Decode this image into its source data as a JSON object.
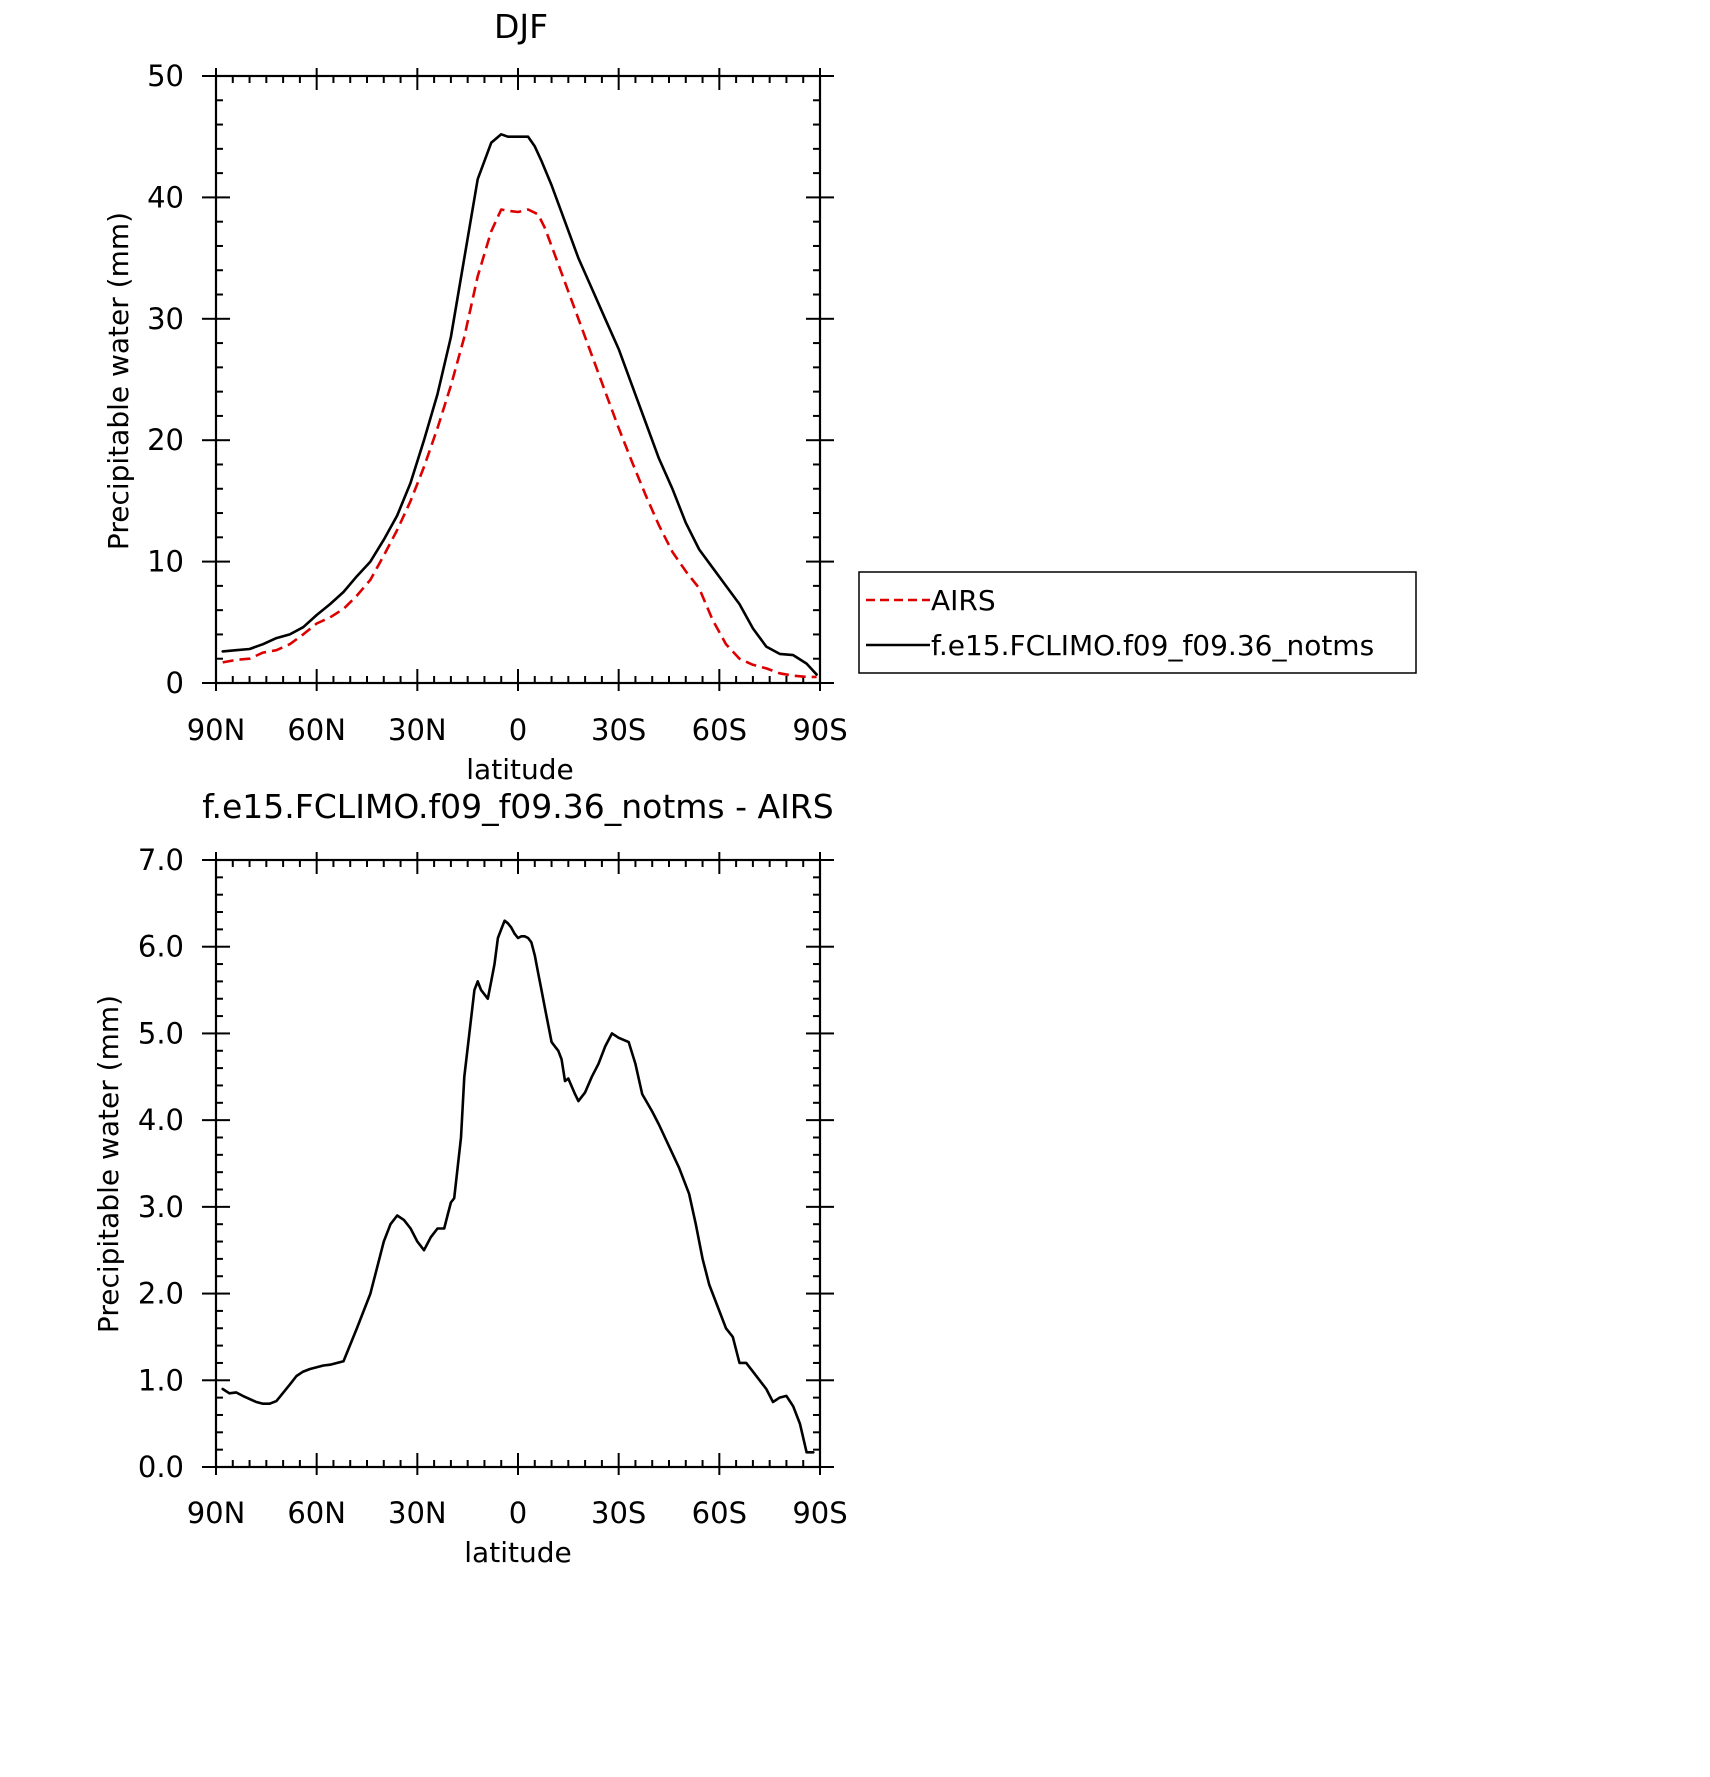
{
  "chart_data": [
    {
      "type": "line",
      "title": "DJF",
      "xlabel": "latitude",
      "ylabel": "Precipitable water (mm)",
      "xlim": [
        90,
        -90
      ],
      "ylim": [
        0,
        50
      ],
      "xtick_values": [
        90,
        60,
        30,
        0,
        -30,
        -60,
        -90
      ],
      "xtick_labels": [
        "90N",
        "60N",
        "30N",
        "0",
        "30S",
        "60S",
        "90S"
      ],
      "ytick_values": [
        0,
        10,
        20,
        30,
        40,
        50
      ],
      "ytick_labels": [
        "0",
        "10",
        "20",
        "30",
        "40",
        "50"
      ],
      "legend_position": "right",
      "series": [
        {
          "name": "AIRS",
          "color": "#dd0000",
          "style": "dashed",
          "x": [
            88,
            84,
            80,
            76,
            72,
            68,
            64,
            60,
            56,
            52,
            48,
            44,
            40,
            36,
            32,
            28,
            24,
            20,
            16,
            12,
            8,
            5,
            3,
            0,
            -3,
            -6,
            -8,
            -10,
            -14,
            -18,
            -22,
            -26,
            -30,
            -34,
            -38,
            -42,
            -46,
            -50,
            -54,
            -58,
            -62,
            -66,
            -70,
            -74,
            -78,
            -82,
            -86,
            -89
          ],
          "y": [
            1.7,
            1.9,
            2.0,
            2.5,
            2.7,
            3.2,
            4.0,
            4.9,
            5.4,
            6.1,
            7.2,
            8.5,
            10.5,
            12.6,
            15.0,
            17.8,
            21.0,
            24.5,
            28.5,
            33.5,
            37.2,
            39.0,
            38.9,
            38.8,
            39.0,
            38.6,
            37.5,
            36.0,
            33.0,
            30.0,
            27.0,
            24.0,
            21.0,
            18.2,
            15.5,
            13.0,
            10.8,
            9.2,
            7.8,
            5.2,
            3.2,
            2.0,
            1.5,
            1.2,
            0.8,
            0.6,
            0.5,
            0.5
          ]
        },
        {
          "name": "f.e15.FCLIMO.f09_f09.36_notms",
          "color": "#000000",
          "style": "solid",
          "x": [
            88,
            84,
            80,
            76,
            72,
            68,
            64,
            60,
            56,
            52,
            48,
            44,
            40,
            36,
            32,
            28,
            24,
            20,
            16,
            12,
            8,
            5,
            3,
            0,
            -3,
            -5,
            -7,
            -10,
            -14,
            -18,
            -22,
            -26,
            -30,
            -34,
            -38,
            -42,
            -46,
            -50,
            -54,
            -58,
            -62,
            -66,
            -70,
            -74,
            -78,
            -82,
            -86,
            -89
          ],
          "y": [
            2.6,
            2.7,
            2.8,
            3.2,
            3.7,
            4.0,
            4.6,
            5.6,
            6.5,
            7.5,
            8.8,
            10.0,
            11.8,
            13.8,
            16.5,
            20.0,
            23.8,
            28.5,
            35.0,
            41.5,
            44.5,
            45.2,
            45.0,
            45.0,
            45.0,
            44.2,
            43.0,
            41.0,
            38.0,
            35.0,
            32.5,
            30.0,
            27.5,
            24.5,
            21.5,
            18.5,
            16.0,
            13.2,
            11.0,
            9.5,
            8.0,
            6.5,
            4.5,
            3.0,
            2.4,
            2.3,
            1.6,
            0.7
          ]
        }
      ]
    },
    {
      "type": "line",
      "title": "f.e15.FCLIMO.f09_f09.36_notms - AIRS",
      "xlabel": "latitude",
      "ylabel": "Precipitable water (mm)",
      "xlim": [
        90,
        -90
      ],
      "ylim": [
        0,
        7
      ],
      "xtick_values": [
        90,
        60,
        30,
        0,
        -30,
        -60,
        -90
      ],
      "xtick_labels": [
        "90N",
        "60N",
        "30N",
        "0",
        "30S",
        "60S",
        "90S"
      ],
      "ytick_values": [
        0,
        1,
        2,
        3,
        4,
        5,
        6,
        7
      ],
      "ytick_labels": [
        "0.0",
        "1.0",
        "2.0",
        "3.0",
        "4.0",
        "5.0",
        "6.0",
        "7.0"
      ],
      "series": [
        {
          "color": "#000000",
          "style": "solid",
          "x": [
            88,
            86,
            84,
            82,
            78,
            76,
            74,
            72,
            68,
            66,
            64,
            62,
            60,
            58,
            56,
            52,
            48,
            44,
            40,
            38,
            36,
            34,
            32,
            30,
            28,
            26,
            24,
            22,
            21,
            20,
            19,
            17,
            16,
            13,
            12,
            11,
            9,
            8,
            7,
            6,
            5,
            4,
            3,
            2,
            1,
            0,
            -1,
            -2,
            -3,
            -4,
            -5,
            -6,
            -7,
            -8,
            -9,
            -10,
            -11,
            -12,
            -13,
            -14,
            -15,
            -17,
            -18,
            -20,
            -22,
            -24,
            -26,
            -28,
            -30,
            -33,
            -35,
            -37,
            -40,
            -42,
            -45,
            -48,
            -51,
            -53,
            -55,
            -57,
            -60,
            -62,
            -64,
            -66,
            -67,
            -68,
            -70,
            -72,
            -74,
            -76,
            -78,
            -80,
            -82,
            -84,
            -86,
            -88
          ],
          "y": [
            0.9,
            0.85,
            0.86,
            0.82,
            0.75,
            0.73,
            0.73,
            0.76,
            0.95,
            1.05,
            1.1,
            1.13,
            1.15,
            1.17,
            1.18,
            1.22,
            1.6,
            2.0,
            2.6,
            2.8,
            2.9,
            2.85,
            2.75,
            2.6,
            2.5,
            2.65,
            2.75,
            2.75,
            2.9,
            3.05,
            3.1,
            3.8,
            4.5,
            5.5,
            5.6,
            5.5,
            5.4,
            5.6,
            5.8,
            6.1,
            6.2,
            6.3,
            6.27,
            6.22,
            6.15,
            6.1,
            6.12,
            6.12,
            6.1,
            6.05,
            5.9,
            5.7,
            5.5,
            5.3,
            5.1,
            4.9,
            4.85,
            4.8,
            4.7,
            4.45,
            4.48,
            4.3,
            4.22,
            4.32,
            4.5,
            4.65,
            4.85,
            5.0,
            4.95,
            4.9,
            4.65,
            4.3,
            4.1,
            3.95,
            3.7,
            3.45,
            3.15,
            2.8,
            2.4,
            2.1,
            1.8,
            1.6,
            1.5,
            1.2,
            1.2,
            1.2,
            1.1,
            1.0,
            0.9,
            0.75,
            0.8,
            0.82,
            0.7,
            0.5,
            0.17,
            0.17
          ]
        }
      ]
    }
  ]
}
